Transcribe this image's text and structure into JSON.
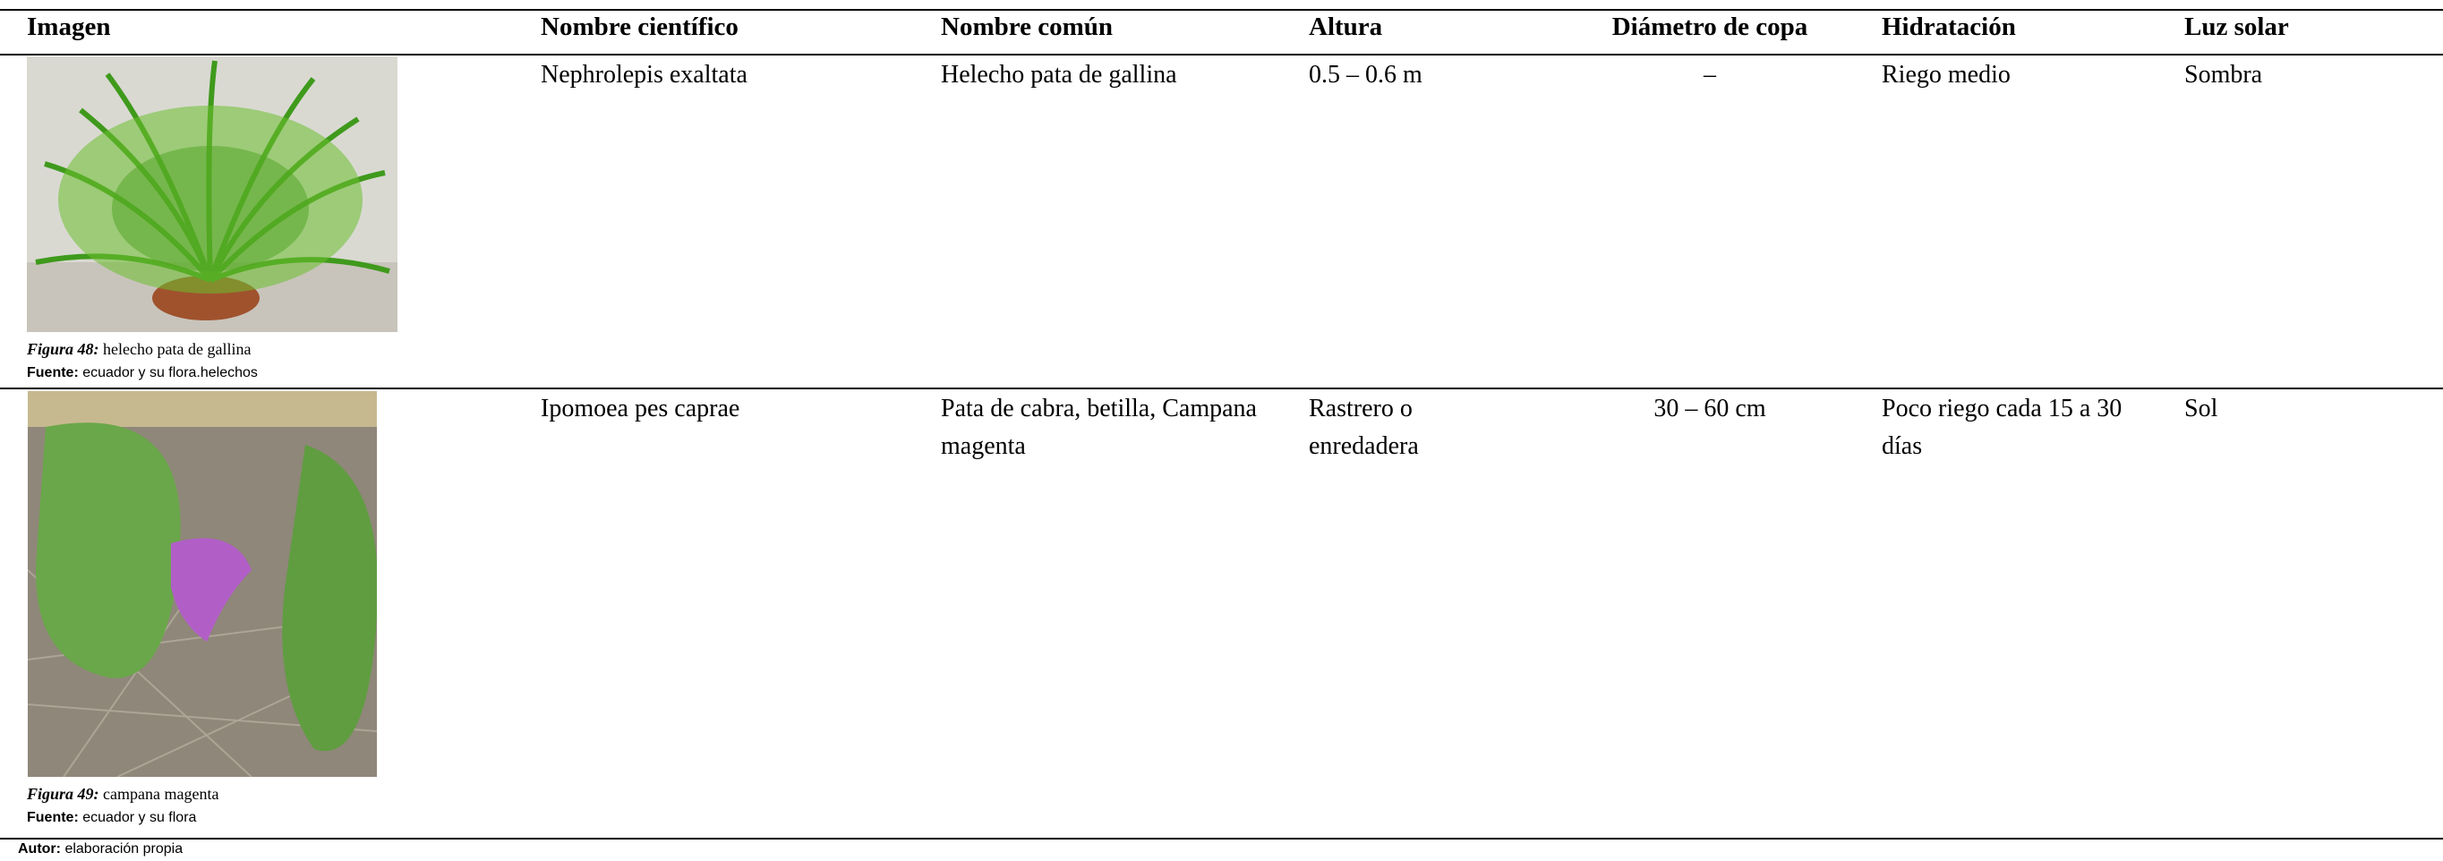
{
  "table": {
    "columns": [
      "Imagen",
      "Nombre científico",
      "Nombre común",
      "Altura",
      "Diámetro de copa",
      "Hidratación",
      "Luz solar"
    ],
    "rows": [
      {
        "figure": {
          "label": "Figura 48:",
          "caption": "helecho pata de gallina"
        },
        "source": {
          "label": "Fuente:",
          "text": "ecuador y su flora.helechos"
        },
        "cells": [
          "Nephrolepis exaltata",
          "Helecho pata de gallina",
          "0.5 – 0.6 m",
          "–",
          "Riego medio",
          "Sombra"
        ]
      },
      {
        "figure": {
          "label": "Figura 49:",
          "caption": "campana magenta"
        },
        "source": {
          "label": "Fuente:",
          "text": "ecuador y su flora"
        },
        "cells": [
          "Ipomoea pes caprae",
          "Pata de cabra, betilla, Campana magenta",
          "Rastrero o enredadera",
          "30 – 60 cm",
          "Poco riego cada 15 a 30 días",
          "Sol"
        ]
      }
    ]
  },
  "footer": {
    "label": "Autor:",
    "text": "elaboración propia"
  }
}
